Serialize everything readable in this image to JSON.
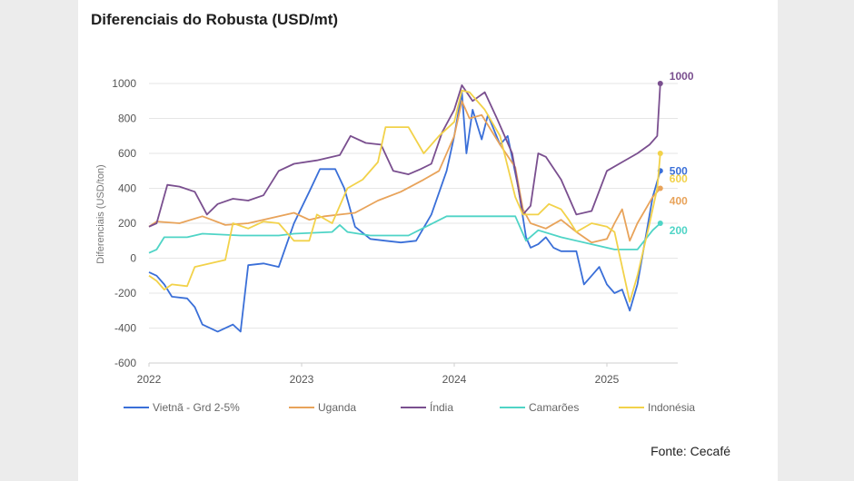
{
  "title": "Diferenciais do Robusta (USD/mt)",
  "source": "Fonte: Cecafé",
  "chart_data": {
    "type": "line",
    "title": "Diferenciais do Robusta (USD/mt)",
    "xlabel": "",
    "ylabel": "Diferenciais (USD/ton)",
    "xlim": [
      2022.0,
      2025.42
    ],
    "ylim": [
      -600,
      1000
    ],
    "x_ticks": [
      "2022",
      "2023",
      "2024",
      "2025"
    ],
    "y_ticks": [
      "1000",
      "800",
      "600",
      "400",
      "200",
      "0",
      "-200",
      "-400",
      "-600"
    ],
    "grid": true,
    "legend_position": "bottom",
    "series": [
      {
        "name": "Vietnã - Grd 2-5%",
        "color": "#3a6fd8",
        "end_label": "500",
        "points": [
          [
            2022.0,
            -80
          ],
          [
            2022.05,
            -100
          ],
          [
            2022.1,
            -150
          ],
          [
            2022.15,
            -220
          ],
          [
            2022.25,
            -230
          ],
          [
            2022.3,
            -280
          ],
          [
            2022.35,
            -380
          ],
          [
            2022.45,
            -420
          ],
          [
            2022.55,
            -380
          ],
          [
            2022.6,
            -420
          ],
          [
            2022.65,
            -40
          ],
          [
            2022.75,
            -30
          ],
          [
            2022.85,
            -50
          ],
          [
            2022.95,
            200
          ],
          [
            2023.05,
            380
          ],
          [
            2023.12,
            510
          ],
          [
            2023.22,
            510
          ],
          [
            2023.28,
            400
          ],
          [
            2023.35,
            180
          ],
          [
            2023.45,
            110
          ],
          [
            2023.55,
            100
          ],
          [
            2023.65,
            90
          ],
          [
            2023.75,
            100
          ],
          [
            2023.85,
            250
          ],
          [
            2023.95,
            500
          ],
          [
            2024.0,
            700
          ],
          [
            2024.05,
            950
          ],
          [
            2024.08,
            600
          ],
          [
            2024.12,
            850
          ],
          [
            2024.18,
            680
          ],
          [
            2024.22,
            820
          ],
          [
            2024.3,
            650
          ],
          [
            2024.35,
            700
          ],
          [
            2024.42,
            400
          ],
          [
            2024.47,
            120
          ],
          [
            2024.5,
            60
          ],
          [
            2024.55,
            80
          ],
          [
            2024.6,
            120
          ],
          [
            2024.65,
            60
          ],
          [
            2024.7,
            40
          ],
          [
            2024.8,
            40
          ],
          [
            2024.85,
            -150
          ],
          [
            2024.9,
            -100
          ],
          [
            2024.95,
            -50
          ],
          [
            2025.0,
            -150
          ],
          [
            2025.05,
            -200
          ],
          [
            2025.1,
            -180
          ],
          [
            2025.15,
            -300
          ],
          [
            2025.2,
            -150
          ],
          [
            2025.25,
            100
          ],
          [
            2025.3,
            350
          ],
          [
            2025.35,
            500
          ]
        ]
      },
      {
        "name": "Uganda",
        "color": "#e8a35a",
        "end_label": "400",
        "points": [
          [
            2022.0,
            180
          ],
          [
            2022.05,
            210
          ],
          [
            2022.2,
            200
          ],
          [
            2022.35,
            240
          ],
          [
            2022.5,
            190
          ],
          [
            2022.65,
            200
          ],
          [
            2022.8,
            230
          ],
          [
            2022.95,
            260
          ],
          [
            2023.05,
            220
          ],
          [
            2023.15,
            240
          ],
          [
            2023.35,
            260
          ],
          [
            2023.5,
            330
          ],
          [
            2023.65,
            380
          ],
          [
            2023.8,
            450
          ],
          [
            2023.9,
            500
          ],
          [
            2024.0,
            700
          ],
          [
            2024.05,
            900
          ],
          [
            2024.1,
            800
          ],
          [
            2024.18,
            820
          ],
          [
            2024.3,
            650
          ],
          [
            2024.4,
            520
          ],
          [
            2024.45,
            280
          ],
          [
            2024.5,
            200
          ],
          [
            2024.6,
            170
          ],
          [
            2024.7,
            220
          ],
          [
            2024.8,
            150
          ],
          [
            2024.9,
            90
          ],
          [
            2025.0,
            110
          ],
          [
            2025.05,
            200
          ],
          [
            2025.1,
            280
          ],
          [
            2025.15,
            100
          ],
          [
            2025.2,
            200
          ],
          [
            2025.3,
            350
          ],
          [
            2025.35,
            400
          ]
        ]
      },
      {
        "name": "Índia",
        "color": "#7a4f8f",
        "end_label": "1000",
        "points": [
          [
            2022.0,
            180
          ],
          [
            2022.05,
            200
          ],
          [
            2022.12,
            420
          ],
          [
            2022.2,
            410
          ],
          [
            2022.3,
            380
          ],
          [
            2022.38,
            250
          ],
          [
            2022.45,
            310
          ],
          [
            2022.55,
            340
          ],
          [
            2022.65,
            330
          ],
          [
            2022.75,
            360
          ],
          [
            2022.85,
            500
          ],
          [
            2022.95,
            540
          ],
          [
            2023.1,
            560
          ],
          [
            2023.25,
            590
          ],
          [
            2023.32,
            700
          ],
          [
            2023.42,
            660
          ],
          [
            2023.52,
            650
          ],
          [
            2023.6,
            500
          ],
          [
            2023.7,
            480
          ],
          [
            2023.78,
            510
          ],
          [
            2023.85,
            540
          ],
          [
            2023.92,
            720
          ],
          [
            2024.0,
            850
          ],
          [
            2024.05,
            990
          ],
          [
            2024.12,
            900
          ],
          [
            2024.2,
            950
          ],
          [
            2024.28,
            800
          ],
          [
            2024.38,
            600
          ],
          [
            2024.45,
            250
          ],
          [
            2024.5,
            300
          ],
          [
            2024.55,
            600
          ],
          [
            2024.6,
            580
          ],
          [
            2024.7,
            450
          ],
          [
            2024.8,
            250
          ],
          [
            2024.9,
            270
          ],
          [
            2025.0,
            500
          ],
          [
            2025.1,
            550
          ],
          [
            2025.2,
            600
          ],
          [
            2025.28,
            650
          ],
          [
            2025.33,
            700
          ],
          [
            2025.35,
            1000
          ]
        ]
      },
      {
        "name": "Camarões",
        "color": "#4fd4c6",
        "end_label": "200",
        "points": [
          [
            2022.0,
            30
          ],
          [
            2022.05,
            50
          ],
          [
            2022.1,
            120
          ],
          [
            2022.25,
            120
          ],
          [
            2022.35,
            140
          ],
          [
            2022.6,
            130
          ],
          [
            2022.85,
            130
          ],
          [
            2022.95,
            140
          ],
          [
            2023.2,
            150
          ],
          [
            2023.25,
            190
          ],
          [
            2023.3,
            150
          ],
          [
            2023.45,
            130
          ],
          [
            2023.7,
            130
          ],
          [
            2023.95,
            240
          ],
          [
            2024.2,
            240
          ],
          [
            2024.4,
            240
          ],
          [
            2024.47,
            100
          ],
          [
            2024.55,
            160
          ],
          [
            2024.7,
            120
          ],
          [
            2024.9,
            80
          ],
          [
            2025.05,
            50
          ],
          [
            2025.2,
            50
          ],
          [
            2025.3,
            160
          ],
          [
            2025.35,
            200
          ]
        ]
      },
      {
        "name": "Indonésia",
        "color": "#f2d24a",
        "end_label": "600",
        "points": [
          [
            2022.0,
            -100
          ],
          [
            2022.05,
            -130
          ],
          [
            2022.1,
            -180
          ],
          [
            2022.15,
            -150
          ],
          [
            2022.25,
            -160
          ],
          [
            2022.3,
            -50
          ],
          [
            2022.4,
            -30
          ],
          [
            2022.5,
            -10
          ],
          [
            2022.55,
            200
          ],
          [
            2022.65,
            170
          ],
          [
            2022.75,
            210
          ],
          [
            2022.85,
            200
          ],
          [
            2022.95,
            100
          ],
          [
            2023.05,
            100
          ],
          [
            2023.1,
            250
          ],
          [
            2023.2,
            200
          ],
          [
            2023.3,
            400
          ],
          [
            2023.4,
            450
          ],
          [
            2023.5,
            550
          ],
          [
            2023.55,
            750
          ],
          [
            2023.7,
            750
          ],
          [
            2023.8,
            600
          ],
          [
            2023.9,
            700
          ],
          [
            2024.0,
            780
          ],
          [
            2024.05,
            960
          ],
          [
            2024.1,
            950
          ],
          [
            2024.2,
            850
          ],
          [
            2024.3,
            700
          ],
          [
            2024.4,
            350
          ],
          [
            2024.45,
            250
          ],
          [
            2024.55,
            250
          ],
          [
            2024.62,
            310
          ],
          [
            2024.7,
            280
          ],
          [
            2024.75,
            220
          ],
          [
            2024.8,
            150
          ],
          [
            2024.9,
            200
          ],
          [
            2025.0,
            180
          ],
          [
            2025.05,
            150
          ],
          [
            2025.1,
            -50
          ],
          [
            2025.15,
            -250
          ],
          [
            2025.2,
            -100
          ],
          [
            2025.28,
            200
          ],
          [
            2025.33,
            400
          ],
          [
            2025.35,
            600
          ]
        ]
      }
    ]
  }
}
